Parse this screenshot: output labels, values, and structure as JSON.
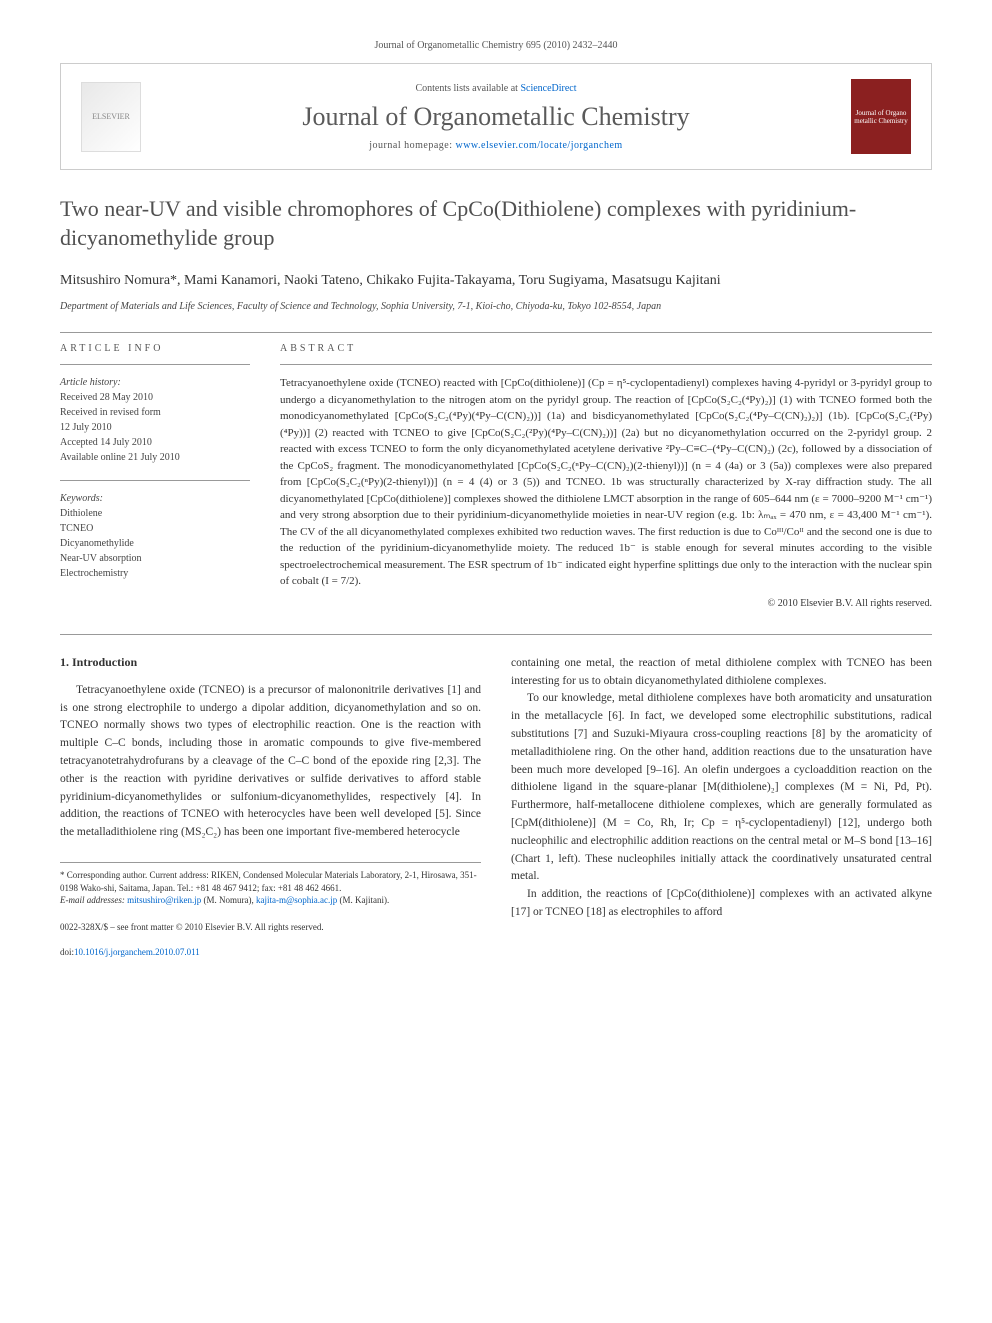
{
  "citation": "Journal of Organometallic Chemistry 695 (2010) 2432–2440",
  "header": {
    "contents_prefix": "Contents lists available at ",
    "contents_link": "ScienceDirect",
    "journal_name": "Journal of Organometallic Chemistry",
    "homepage_prefix": "journal homepage: ",
    "homepage_url": "www.elsevier.com/locate/jorganchem",
    "publisher_logo": "ELSEVIER",
    "cover_logo": "Journal of Organo metallic Chemistry"
  },
  "title": "Two near-UV and visible chromophores of CpCo(Dithiolene) complexes with pyridinium-dicyanomethylide group",
  "authors": "Mitsushiro Nomura*, Mami Kanamori, Naoki Tateno, Chikako Fujita-Takayama, Toru Sugiyama, Masatsugu Kajitani",
  "affiliation": "Department of Materials and Life Sciences, Faculty of Science and Technology, Sophia University, 7-1, Kioi-cho, Chiyoda-ku, Tokyo 102-8554, Japan",
  "info": {
    "heading": "ARTICLE INFO",
    "history_label": "Article history:",
    "received": "Received 28 May 2010",
    "revised": "Received in revised form",
    "revised_date": "12 July 2010",
    "accepted": "Accepted 14 July 2010",
    "online": "Available online 21 July 2010",
    "keywords_label": "Keywords:",
    "keywords": [
      "Dithiolene",
      "TCNEO",
      "Dicyanomethylide",
      "Near-UV absorption",
      "Electrochemistry"
    ]
  },
  "abstract": {
    "heading": "ABSTRACT",
    "text": "Tetracyanoethylene oxide (TCNEO) reacted with [CpCo(dithiolene)] (Cp = η⁵-cyclopentadienyl) complexes having 4-pyridyl or 3-pyridyl group to undergo a dicyanomethylation to the nitrogen atom on the pyridyl group. The reaction of [CpCo(S₂C₂(⁴Py)₂)] (1) with TCNEO formed both the monodicyanomethylated [CpCo(S₂C₂(⁴Py)(⁴Py–C(CN)₂))] (1a) and bisdicyanomethylated [CpCo(S₂C₂(⁴Py–C(CN)₂)₂)] (1b). [CpCo(S₂C₂(²Py)(⁴Py))] (2) reacted with TCNEO to give [CpCo(S₂C₂(²Py)(⁴Py–C(CN)₂))] (2a) but no dicyanomethylation occurred on the 2-pyridyl group. 2 reacted with excess TCNEO to form the only dicyanomethylated acetylene derivative ²Py–C≡C–(⁴Py–C(CN)₂) (2c), followed by a dissociation of the CpCoS₂ fragment. The monodicyanomethylated [CpCo(S₂C₂(ⁿPy–C(CN)₂)(2-thienyl))] (n = 4 (4a) or 3 (5a)) complexes were also prepared from [CpCo(S₂C₂(ⁿPy)(2-thienyl))] (n = 4 (4) or 3 (5)) and TCNEO. 1b was structurally characterized by X-ray diffraction study. The all dicyanomethylated [CpCo(dithiolene)] complexes showed the dithiolene LMCT absorption in the range of 605–644 nm (ε = 7000–9200 M⁻¹ cm⁻¹) and very strong absorption due to their pyridinium-dicyanomethylide moieties in near-UV region (e.g. 1b: λₘₐₓ = 470 nm, ε = 43,400 M⁻¹ cm⁻¹). The CV of the all dicyanomethylated complexes exhibited two reduction waves. The first reduction is due to Coᴵᴵᴵ/Coᴵᴵ and the second one is due to the reduction of the pyridinium-dicyanomethylide moiety. The reduced 1b⁻ is stable enough for several minutes according to the visible spectroelectrochemical measurement. The ESR spectrum of 1b⁻ indicated eight hyperfine splittings due only to the interaction with the nuclear spin of cobalt (I = 7/2).",
    "copyright": "© 2010 Elsevier B.V. All rights reserved."
  },
  "section1": {
    "heading": "1. Introduction",
    "p1": "Tetracyanoethylene oxide (TCNEO) is a precursor of malononitrile derivatives [1] and is one strong electrophile to undergo a dipolar addition, dicyanomethylation and so on. TCNEO normally shows two types of electrophilic reaction. One is the reaction with multiple C–C bonds, including those in aromatic compounds to give five-membered tetracyanotetrahydrofurans by a cleavage of the C–C bond of the epoxide ring [2,3]. The other is the reaction with pyridine derivatives or sulfide derivatives to afford stable pyridinium-dicyanomethylides or sulfonium-dicyanomethylides, respectively [4]. In addition, the reactions of TCNEO with heterocycles have been well developed [5]. Since the metalladithiolene ring (MS₂C₂) has been one important five-membered heterocycle",
    "p2": "containing one metal, the reaction of metal dithiolene complex with TCNEO has been interesting for us to obtain dicyanomethylated dithiolene complexes.",
    "p3": "To our knowledge, metal dithiolene complexes have both aromaticity and unsaturation in the metallacycle [6]. In fact, we developed some electrophilic substitutions, radical substitutions [7] and Suzuki-Miyaura cross-coupling reactions [8] by the aromaticity of metalladithiolene ring. On the other hand, addition reactions due to the unsaturation have been much more developed [9–16]. An olefin undergoes a cycloaddition reaction on the dithiolene ligand in the square-planar [M(dithiolene)₂] complexes (M = Ni, Pd, Pt). Furthermore, half-metallocene dithiolene complexes, which are generally formulated as [CpM(dithiolene)] (M = Co, Rh, Ir; Cp = η⁵-cyclopentadienyl) [12], undergo both nucleophilic and electrophilic addition reactions on the central metal or M–S bond [13–16] (Chart 1, left). These nucleophiles initially attack the coordinatively unsaturated central metal.",
    "p4": "In addition, the reactions of [CpCo(dithiolene)] complexes with an activated alkyne [17] or TCNEO [18] as electrophiles to afford"
  },
  "footnote": {
    "corr": "* Corresponding author. Current address: RIKEN, Condensed Molecular Materials Laboratory, 2-1, Hirosawa, 351-0198 Wako-shi, Saitama, Japan. Tel.: +81 48 467 9412; fax: +81 48 462 4661.",
    "email_label": "E-mail addresses: ",
    "email1": "mitsushiro@riken.jp",
    "email1_person": "(M. Nomura), ",
    "email2": "kajita-m@sophia.ac.jp",
    "email2_person": "(M. Kajitani)."
  },
  "footer": {
    "issn": "0022-328X/$ – see front matter © 2010 Elsevier B.V. All rights reserved.",
    "doi_label": "doi:",
    "doi": "10.1016/j.jorganchem.2010.07.011"
  }
}
